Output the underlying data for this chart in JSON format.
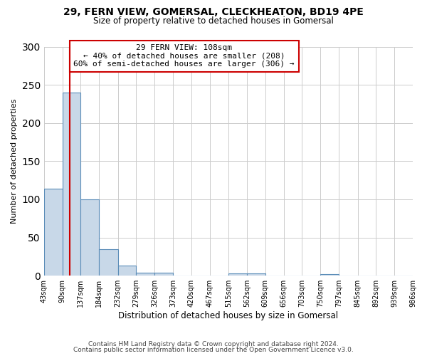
{
  "title": "29, FERN VIEW, GOMERSAL, CLECKHEATON, BD19 4PE",
  "subtitle": "Size of property relative to detached houses in Gomersal",
  "xlabel": "Distribution of detached houses by size in Gomersal",
  "ylabel": "Number of detached properties",
  "bar_heights": [
    114,
    240,
    100,
    35,
    13,
    4,
    4,
    0,
    0,
    0,
    3,
    3,
    0,
    0,
    0,
    2,
    0,
    0,
    0,
    0
  ],
  "bin_edges": [
    43,
    90,
    137,
    184,
    232,
    279,
    326,
    373,
    420,
    467,
    515,
    562,
    609,
    656,
    703,
    750,
    797,
    845,
    892,
    939,
    986
  ],
  "bar_color": "#c8d8e8",
  "bar_edge_color": "#5b8db8",
  "red_line_x": 108,
  "annotation_line1": "29 FERN VIEW: 108sqm",
  "annotation_line2": "← 40% of detached houses are smaller (208)",
  "annotation_line3": "60% of semi-detached houses are larger (306) →",
  "annotation_box_color": "#ffffff",
  "annotation_box_edge": "#cc0000",
  "red_line_color": "#cc0000",
  "ylim": [
    0,
    300
  ],
  "yticks": [
    0,
    50,
    100,
    150,
    200,
    250,
    300
  ],
  "footer_line1": "Contains HM Land Registry data © Crown copyright and database right 2024.",
  "footer_line2": "Contains public sector information licensed under the Open Government Licence v3.0.",
  "background_color": "#ffffff",
  "grid_color": "#cccccc"
}
